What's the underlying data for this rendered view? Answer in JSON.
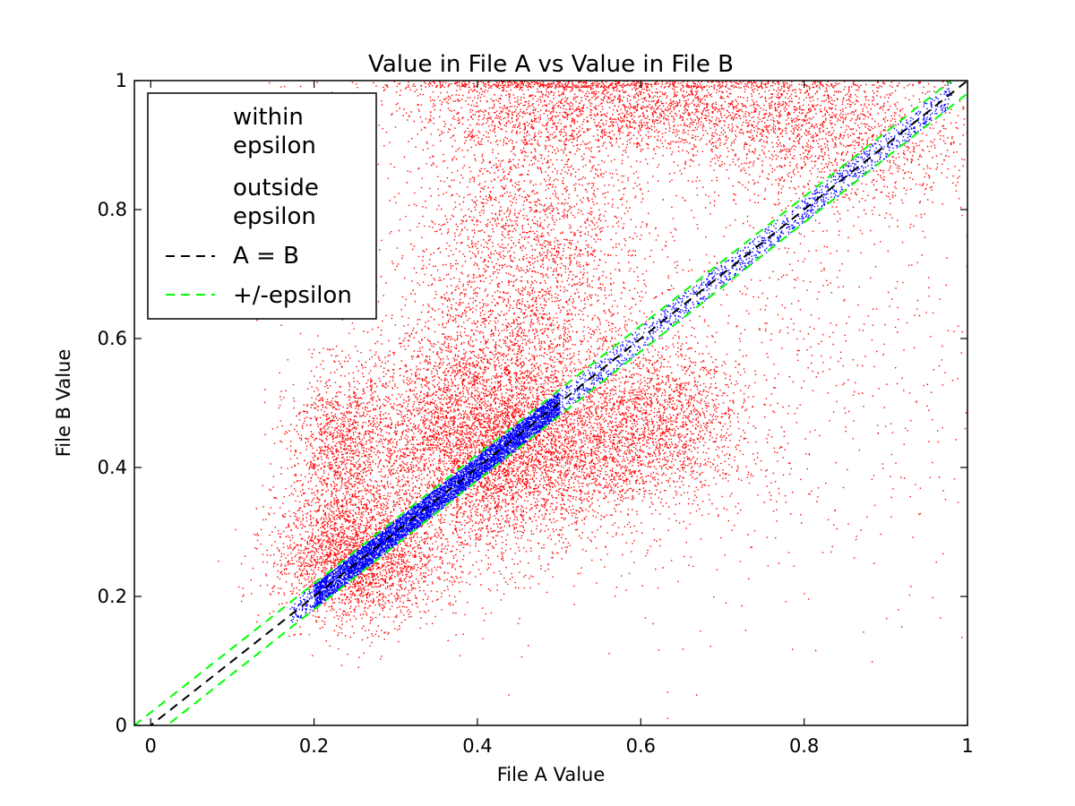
{
  "chart_data": {
    "type": "scatter",
    "title": "Value in File A vs Value in File B",
    "xlabel": "File A Value",
    "ylabel": "File B Value",
    "xlim": [
      -0.02,
      1.0
    ],
    "ylim": [
      0,
      1
    ],
    "x_ticks": [
      "0",
      "0.2",
      "0.4",
      "0.6",
      "0.8",
      "1"
    ],
    "y_ticks": [
      "0",
      "0.2",
      "0.4",
      "0.6",
      "0.8",
      "1"
    ],
    "x_tick_values": [
      0,
      0.2,
      0.4,
      0.6,
      0.8,
      1.0
    ],
    "y_tick_values": [
      0,
      0.2,
      0.4,
      0.6,
      0.8,
      1.0
    ],
    "grid": false,
    "legend_position": "top-left",
    "epsilon": 0.02,
    "series": [
      {
        "name": "within epsilon",
        "kind": "scatter",
        "color": "#0000ff",
        "description_points": [
          [
            0.17,
            0.17
          ],
          [
            0.2,
            0.2
          ],
          [
            0.25,
            0.25
          ],
          [
            0.3,
            0.3
          ],
          [
            0.35,
            0.35
          ],
          [
            0.4,
            0.4
          ],
          [
            0.45,
            0.45
          ],
          [
            0.5,
            0.5
          ],
          [
            0.55,
            0.55
          ],
          [
            0.6,
            0.6
          ],
          [
            0.65,
            0.65
          ],
          [
            0.7,
            0.7
          ],
          [
            0.75,
            0.75
          ],
          [
            0.8,
            0.8
          ],
          [
            0.85,
            0.85
          ],
          [
            0.9,
            0.9
          ],
          [
            0.95,
            0.95
          ],
          [
            0.98,
            0.98
          ]
        ]
      },
      {
        "name": "outside epsilon",
        "kind": "scatter",
        "color": "#ff0000",
        "clusters": [
          {
            "cx": 0.46,
            "cy": 0.72,
            "sx": 0.07,
            "sy": 0.17,
            "weight": 0.34
          },
          {
            "cx": 0.4,
            "cy": 0.44,
            "sx": 0.08,
            "sy": 0.09,
            "weight": 0.2
          },
          {
            "cx": 0.25,
            "cy": 0.26,
            "sx": 0.05,
            "sy": 0.05,
            "weight": 0.1
          },
          {
            "cx": 0.6,
            "cy": 0.96,
            "sx": 0.15,
            "sy": 0.035,
            "weight": 0.12
          },
          {
            "cx": 0.23,
            "cy": 0.43,
            "sx": 0.03,
            "sy": 0.06,
            "weight": 0.04
          },
          {
            "cx": 0.62,
            "cy": 0.5,
            "sx": 0.05,
            "sy": 0.05,
            "weight": 0.04
          },
          {
            "cx": 0.55,
            "cy": 0.42,
            "sx": 0.09,
            "sy": 0.05,
            "weight": 0.06
          },
          {
            "cx": 0.85,
            "cy": 0.9,
            "sx": 0.09,
            "sy": 0.05,
            "weight": 0.05
          },
          {
            "cx": 0.7,
            "cy": 0.6,
            "sx": 0.2,
            "sy": 0.2,
            "weight": 0.05
          }
        ]
      },
      {
        "name": "A = B",
        "kind": "line",
        "color": "#000000",
        "x": [
          -0.02,
          1.0
        ],
        "y": [
          -0.02,
          1.0
        ]
      },
      {
        "name": "+/-epsilon",
        "kind": "line",
        "color": "#00ff00",
        "x": [
          -0.02,
          1.0
        ],
        "y_upper": [
          0.0,
          1.02
        ],
        "y_lower": [
          -0.04,
          0.98
        ]
      }
    ],
    "legend": [
      {
        "line1": "within",
        "line2": "epsilon"
      },
      {
        "line1": "outside",
        "line2": "epsilon"
      },
      {
        "line1": "A = B",
        "line2": ""
      },
      {
        "line1": "+/-epsilon",
        "line2": ""
      }
    ]
  }
}
